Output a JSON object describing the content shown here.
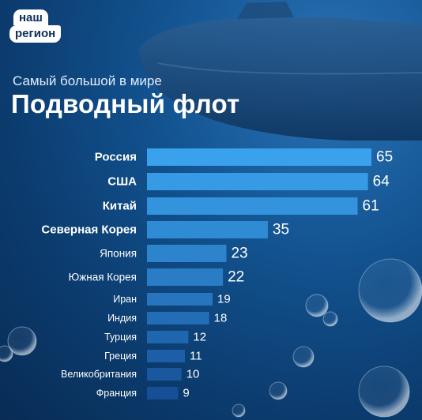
{
  "logo": {
    "line1": "наш",
    "line2": "регион"
  },
  "header": {
    "subtitle": "Самый большой в мире",
    "title": "Подводный флот"
  },
  "colors": {
    "background": "#0b3a6c",
    "bar_top": "#3aa2ec",
    "bar_bottom": "#164f97"
  },
  "chart_data": {
    "type": "bar",
    "orientation": "horizontal",
    "title": "Подводный флот",
    "subtitle": "Самый большой в мире",
    "categories": [
      "Россия",
      "США",
      "Китай",
      "Северная Корея",
      "Япония",
      "Южная Корея",
      "Иран",
      "Индия",
      "Турция",
      "Греция",
      "Великобритания",
      "Франция"
    ],
    "values": [
      65,
      64,
      61,
      35,
      23,
      22,
      19,
      18,
      12,
      11,
      10,
      9
    ],
    "xlim": [
      0,
      65
    ],
    "grid": false,
    "legend": "none"
  }
}
